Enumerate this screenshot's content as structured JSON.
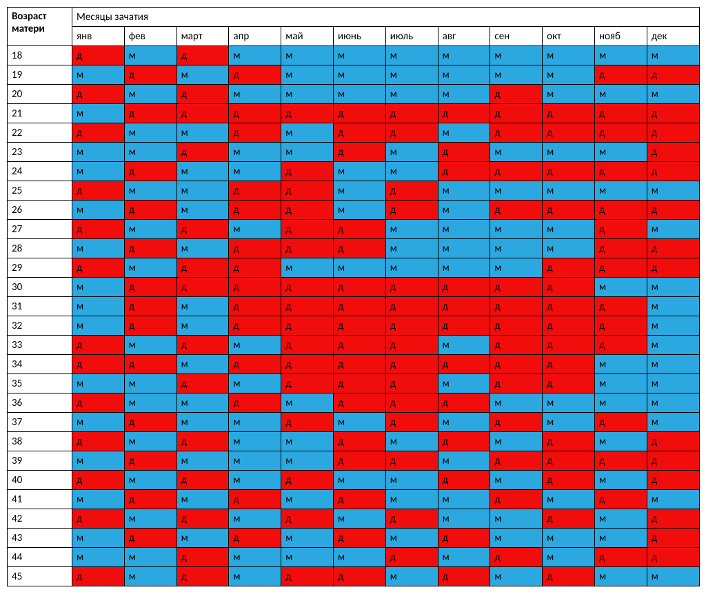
{
  "header": {
    "row_label_line1": "Возраст",
    "row_label_line2": "матери",
    "group_label": "Месяцы зачатия",
    "months": [
      "янв",
      "фев",
      "март",
      "апр",
      "май",
      "июнь",
      "июль",
      "авг",
      "сен",
      "окт",
      "нояб",
      "дек"
    ]
  },
  "colors": {
    "m": "#2ba8e0",
    "d": "#f20d0d",
    "border": "#000000",
    "header_bg": "#ffffff",
    "age_bg": "#ffffff"
  },
  "labels": {
    "m": "м",
    "d": "д"
  },
  "font": {
    "family": "Calibri, Arial, sans-serif",
    "size_pt": 11
  },
  "ages": [
    18,
    19,
    20,
    21,
    22,
    23,
    24,
    25,
    26,
    27,
    28,
    29,
    30,
    31,
    32,
    33,
    34,
    35,
    36,
    37,
    38,
    39,
    40,
    41,
    42,
    43,
    44,
    45
  ],
  "grid": [
    [
      "д",
      "м",
      "д",
      "м",
      "м",
      "м",
      "м",
      "м",
      "м",
      "м",
      "м",
      "м"
    ],
    [
      "м",
      "д",
      "м",
      "д",
      "м",
      "м",
      "м",
      "м",
      "м",
      "м",
      "д",
      "д"
    ],
    [
      "д",
      "м",
      "д",
      "м",
      "м",
      "м",
      "м",
      "м",
      "д",
      "м",
      "м",
      "м"
    ],
    [
      "м",
      "д",
      "д",
      "д",
      "д",
      "д",
      "д",
      "д",
      "д",
      "д",
      "д",
      "д"
    ],
    [
      "д",
      "м",
      "м",
      "д",
      "м",
      "д",
      "д",
      "м",
      "д",
      "д",
      "д",
      "д"
    ],
    [
      "м",
      "м",
      "д",
      "м",
      "м",
      "д",
      "м",
      "д",
      "м",
      "м",
      "м",
      "д"
    ],
    [
      "м",
      "д",
      "м",
      "м",
      "д",
      "м",
      "м",
      "д",
      "д",
      "д",
      "д",
      "д"
    ],
    [
      "д",
      "м",
      "м",
      "д",
      "д",
      "м",
      "д",
      "м",
      "м",
      "м",
      "м",
      "м"
    ],
    [
      "м",
      "д",
      "м",
      "д",
      "д",
      "м",
      "д",
      "м",
      "д",
      "д",
      "д",
      "д"
    ],
    [
      "д",
      "м",
      "д",
      "м",
      "д",
      "д",
      "м",
      "м",
      "м",
      "м",
      "д",
      "м"
    ],
    [
      "м",
      "д",
      "м",
      "д",
      "д",
      "д",
      "м",
      "м",
      "м",
      "м",
      "д",
      "д"
    ],
    [
      "д",
      "м",
      "д",
      "д",
      "м",
      "м",
      "м",
      "м",
      "м",
      "д",
      "д",
      "д"
    ],
    [
      "м",
      "д",
      "д",
      "д",
      "д",
      "д",
      "д",
      "д",
      "д",
      "д",
      "м",
      "м"
    ],
    [
      "м",
      "д",
      "м",
      "д",
      "д",
      "д",
      "д",
      "д",
      "д",
      "д",
      "д",
      "м"
    ],
    [
      "м",
      "д",
      "м",
      "д",
      "д",
      "д",
      "д",
      "д",
      "д",
      "д",
      "д",
      "м"
    ],
    [
      "д",
      "м",
      "д",
      "м",
      "д",
      "д",
      "д",
      "м",
      "д",
      "д",
      "д",
      "м"
    ],
    [
      "д",
      "д",
      "м",
      "д",
      "д",
      "д",
      "д",
      "д",
      "д",
      "д",
      "м",
      "м"
    ],
    [
      "м",
      "м",
      "д",
      "м",
      "д",
      "д",
      "д",
      "м",
      "д",
      "д",
      "м",
      "м"
    ],
    [
      "д",
      "м",
      "м",
      "д",
      "м",
      "д",
      "д",
      "д",
      "м",
      "м",
      "м",
      "м"
    ],
    [
      "м",
      "д",
      "м",
      "м",
      "д",
      "м",
      "д",
      "м",
      "д",
      "м",
      "д",
      "м"
    ],
    [
      "д",
      "м",
      "д",
      "м",
      "м",
      "д",
      "м",
      "д",
      "м",
      "д",
      "м",
      "д"
    ],
    [
      "м",
      "д",
      "м",
      "м",
      "м",
      "д",
      "д",
      "м",
      "д",
      "д",
      "д",
      "д"
    ],
    [
      "д",
      "м",
      "д",
      "м",
      "д",
      "м",
      "м",
      "д",
      "м",
      "д",
      "м",
      "д"
    ],
    [
      "м",
      "д",
      "м",
      "д",
      "м",
      "д",
      "м",
      "м",
      "д",
      "м",
      "д",
      "м"
    ],
    [
      "д",
      "м",
      "д",
      "м",
      "д",
      "м",
      "д",
      "м",
      "м",
      "д",
      "м",
      "д"
    ],
    [
      "м",
      "д",
      "м",
      "д",
      "м",
      "д",
      "м",
      "д",
      "м",
      "м",
      "м",
      "д"
    ],
    [
      "м",
      "м",
      "д",
      "м",
      "м",
      "м",
      "д",
      "м",
      "д",
      "м",
      "д",
      "д"
    ],
    [
      "д",
      "м",
      "д",
      "м",
      "д",
      "д",
      "м",
      "д",
      "м",
      "д",
      "м",
      "м"
    ]
  ]
}
